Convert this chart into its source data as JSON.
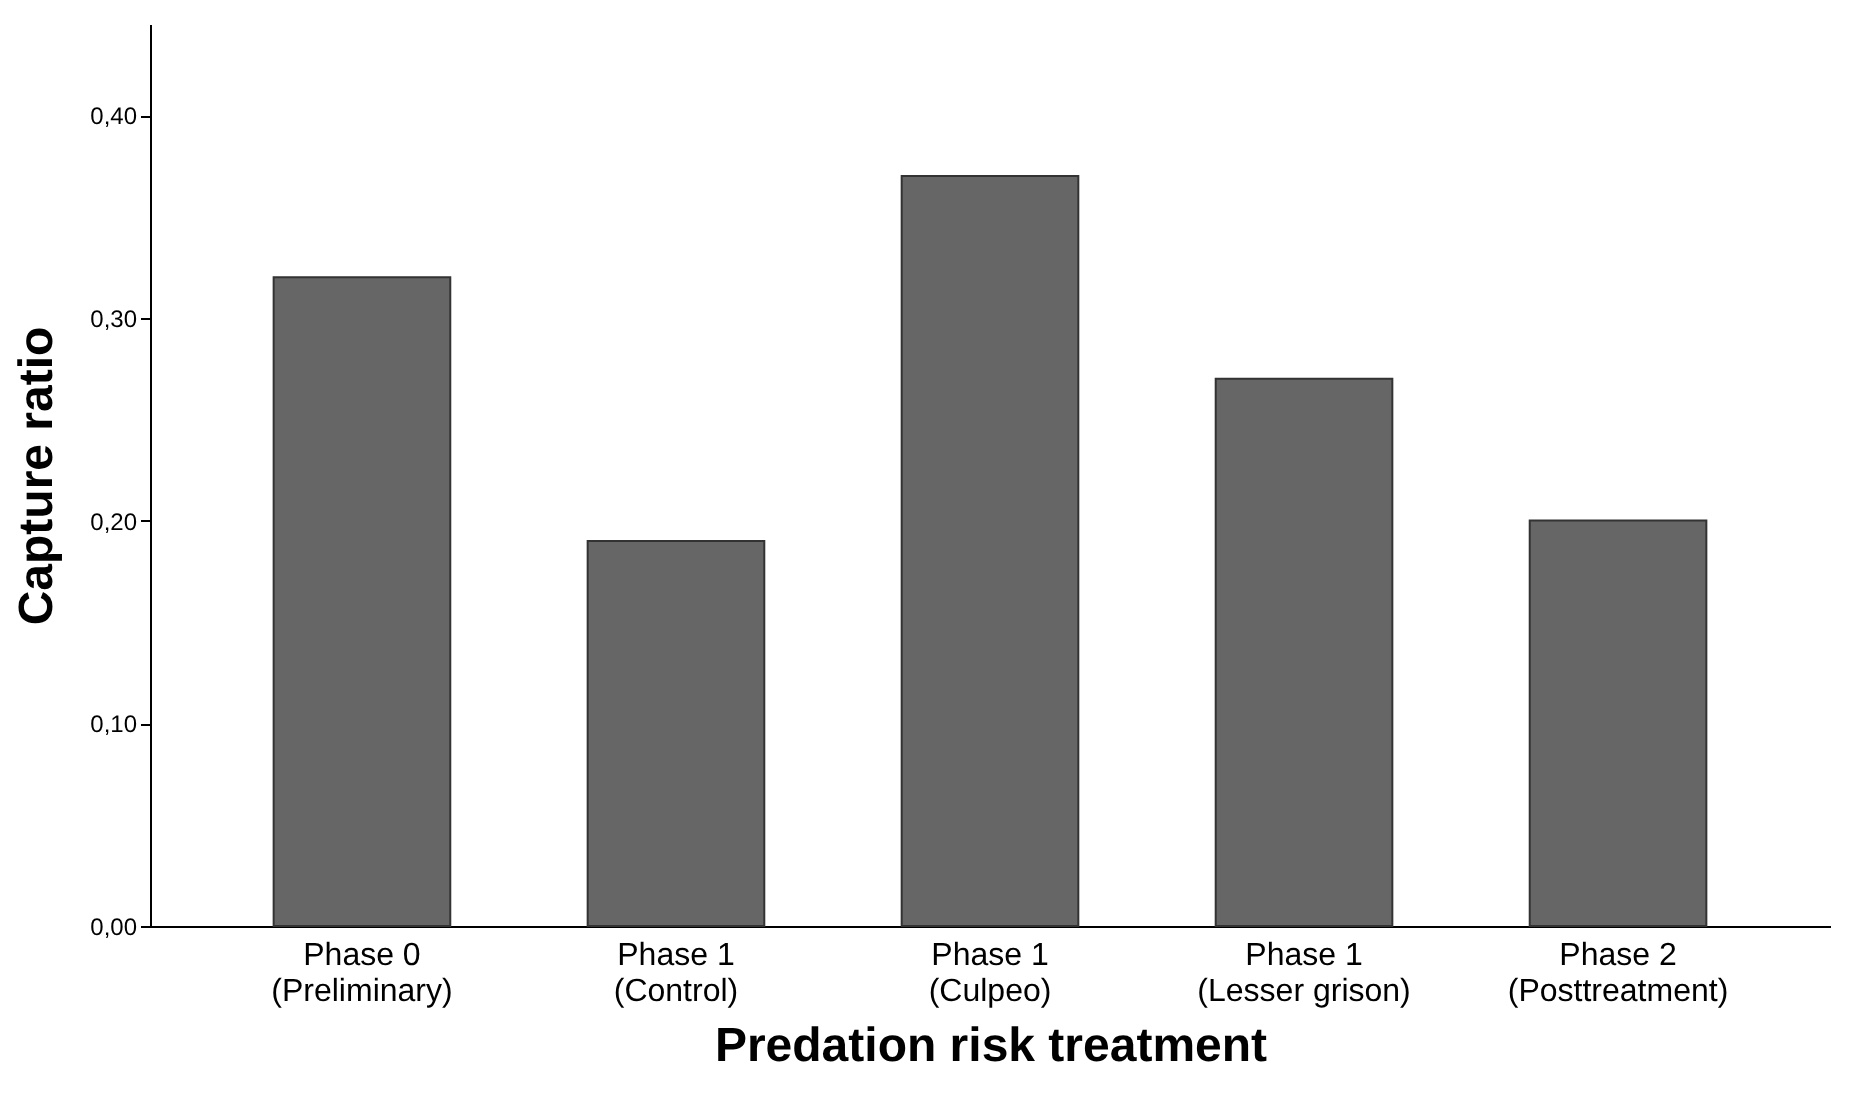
{
  "chart_data": {
    "type": "bar",
    "xlabel": "Predation risk treatment",
    "ylabel": "Capture ratio",
    "categories": [
      "Phase 0\n(Preliminary)",
      "Phase 1\n(Control)",
      "Phase 1\n(Culpeo)",
      "Phase 1\n(Lesser grison)",
      "Phase 2\n(Posttreatment)"
    ],
    "values": [
      0.32,
      0.19,
      0.37,
      0.27,
      0.2
    ],
    "color": "#666666",
    "ylim": [
      0,
      0.445
    ],
    "yticks": [
      {
        "value": 0,
        "label": "0,00"
      },
      {
        "value": 0.1,
        "label": "0,10"
      },
      {
        "value": 0.2,
        "label": "0,20"
      },
      {
        "value": 0.3,
        "label": "0,30"
      },
      {
        "value": 0.4,
        "label": "0,40"
      }
    ],
    "grid": false
  }
}
